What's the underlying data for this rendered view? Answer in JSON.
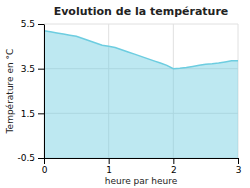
{
  "chart_data": {
    "type": "area",
    "title": "Evolution de la température",
    "x_label": "heure par heure",
    "y_label": "Température en °C",
    "x": [
      0,
      0.1,
      0.2,
      0.3,
      0.4,
      0.5,
      0.6,
      0.7,
      0.8,
      0.9,
      1.0,
      1.1,
      1.2,
      1.3,
      1.4,
      1.5,
      1.6,
      1.7,
      1.8,
      1.9,
      2.0,
      2.1,
      2.2,
      2.3,
      2.4,
      2.5,
      2.6,
      2.7,
      2.8,
      2.9,
      3.0
    ],
    "values": [
      5.2,
      5.15,
      5.1,
      5.05,
      5.0,
      4.95,
      4.85,
      4.75,
      4.65,
      4.55,
      4.5,
      4.45,
      4.35,
      4.25,
      4.15,
      4.05,
      3.95,
      3.85,
      3.75,
      3.65,
      3.5,
      3.52,
      3.55,
      3.6,
      3.65,
      3.7,
      3.72,
      3.75,
      3.8,
      3.85,
      3.85
    ],
    "color": "#6dcde0",
    "xlim": [
      0,
      3
    ],
    "xticks": [
      0,
      1,
      2,
      3
    ],
    "ylim": [
      -0.5,
      5.5
    ],
    "yticks": [
      -0.5,
      1.5,
      3.5,
      5.5
    ],
    "grid": true
  }
}
